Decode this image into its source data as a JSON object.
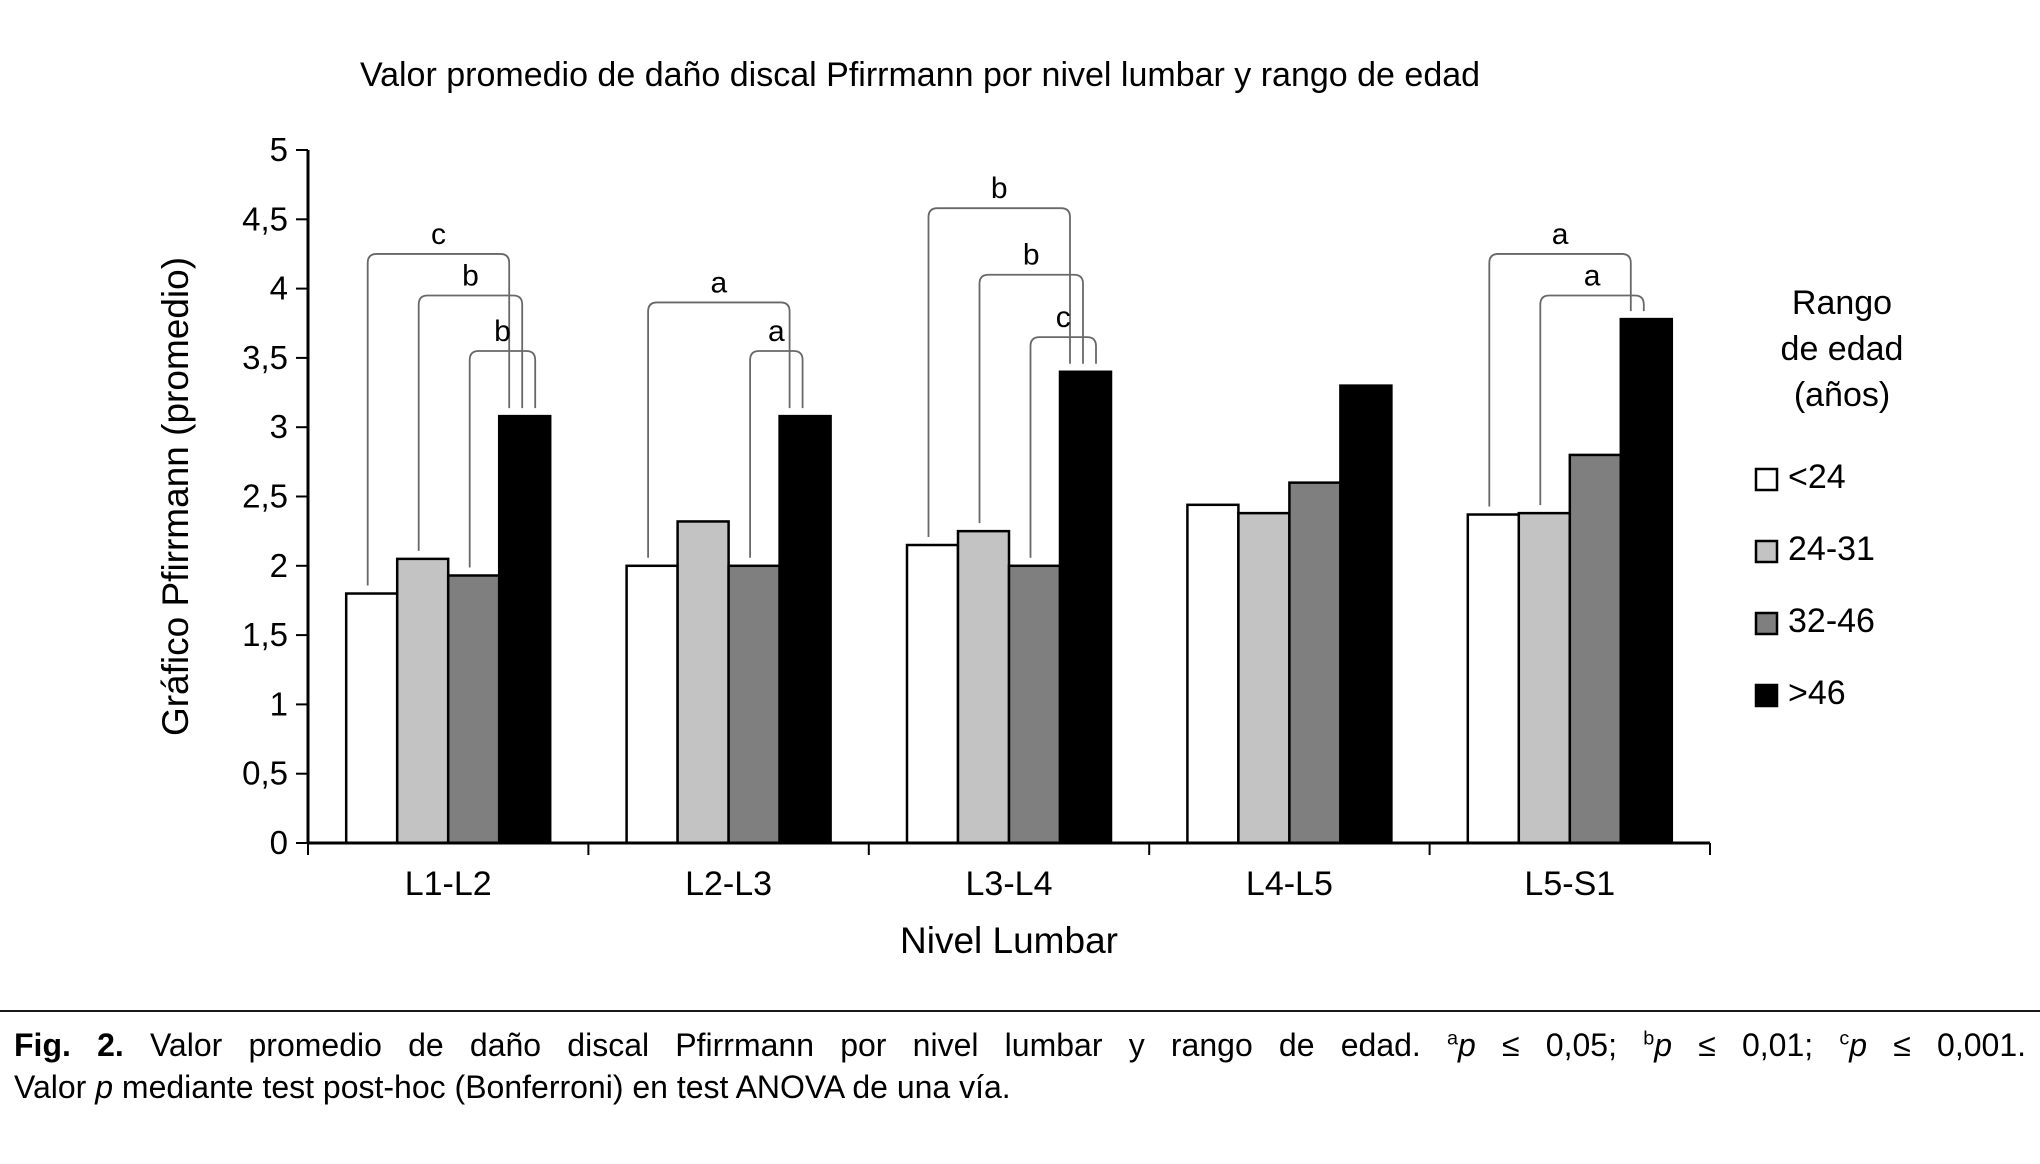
{
  "chart_data": {
    "type": "bar",
    "title": "Valor promedio de daño discal Pfirrmann por nivel lumbar y rango de edad",
    "xlabel": "Nivel Lumbar",
    "ylabel": "Gráfico Pfirrmann (promedio)",
    "ylim": [
      0,
      5
    ],
    "ytick_values": [
      0,
      0.5,
      1,
      1.5,
      2,
      2.5,
      3,
      3.5,
      4,
      4.5,
      5
    ],
    "ytick_labels": [
      "0",
      "0,5",
      "1",
      "1,5",
      "2",
      "2,5",
      "3",
      "3,5",
      "4",
      "4,5",
      "5"
    ],
    "grid": false,
    "categories": [
      "L1-L2",
      "L2-L3",
      "L3-L4",
      "L4-L5",
      "L5-S1"
    ],
    "series": [
      {
        "name": "<24",
        "fill": "#ffffff",
        "values": [
          1.8,
          2.0,
          2.15,
          2.44,
          2.37
        ]
      },
      {
        "name": "24-31",
        "fill": "#c3c3c3",
        "values": [
          2.05,
          2.32,
          2.25,
          2.38,
          2.38
        ]
      },
      {
        "name": "32-46",
        "fill": "#7f7f7f",
        "values": [
          1.93,
          2.0,
          2.0,
          2.6,
          2.8
        ]
      },
      {
        "name": ">46",
        "fill": "#000000",
        "values": [
          3.08,
          3.08,
          3.4,
          3.3,
          3.78
        ]
      }
    ],
    "legend_title": "Rango de edad (años)",
    "legend_title_lines": [
      "Rango",
      "de edad",
      "(años)"
    ],
    "legend_position": "right",
    "brackets": [
      {
        "category": 0,
        "from": 0,
        "to": 3,
        "y": 4.25,
        "label": "c"
      },
      {
        "category": 0,
        "from": 1,
        "to": 3,
        "y": 3.95,
        "label": "b"
      },
      {
        "category": 0,
        "from": 2,
        "to": 3,
        "y": 3.55,
        "label": "b"
      },
      {
        "category": 1,
        "from": 0,
        "to": 3,
        "y": 3.9,
        "label": "a"
      },
      {
        "category": 1,
        "from": 2,
        "to": 3,
        "y": 3.55,
        "label": "a"
      },
      {
        "category": 2,
        "from": 0,
        "to": 3,
        "y": 4.58,
        "label": "b"
      },
      {
        "category": 2,
        "from": 1,
        "to": 3,
        "y": 4.1,
        "label": "b"
      },
      {
        "category": 2,
        "from": 2,
        "to": 3,
        "y": 3.65,
        "label": "c"
      },
      {
        "category": 4,
        "from": 0,
        "to": 3,
        "y": 4.25,
        "label": "a"
      },
      {
        "category": 4,
        "from": 1,
        "to": 3,
        "y": 3.95,
        "label": "a"
      }
    ]
  },
  "caption": {
    "fig": "Fig. 2.",
    "main": " Valor promedio de daño discal Pfirrmann por nivel lumbar y rango de edad. ",
    "sig": [
      {
        "sup": "a",
        "p": "p",
        "rest": " ≤ 0,05; "
      },
      {
        "sup": "b",
        "p": "p",
        "rest": " ≤ 0,01; "
      },
      {
        "sup": "c",
        "p": "p",
        "rest": " ≤ 0,001."
      }
    ],
    "line2_pre": "Valor ",
    "line2_p": "p",
    "line2_post": " mediante test post-hoc (Bonferroni) en test ANOVA de una vía."
  },
  "colors": {
    "axis": "#000000",
    "bracket": "#686868",
    "bar_border": "#000000"
  }
}
